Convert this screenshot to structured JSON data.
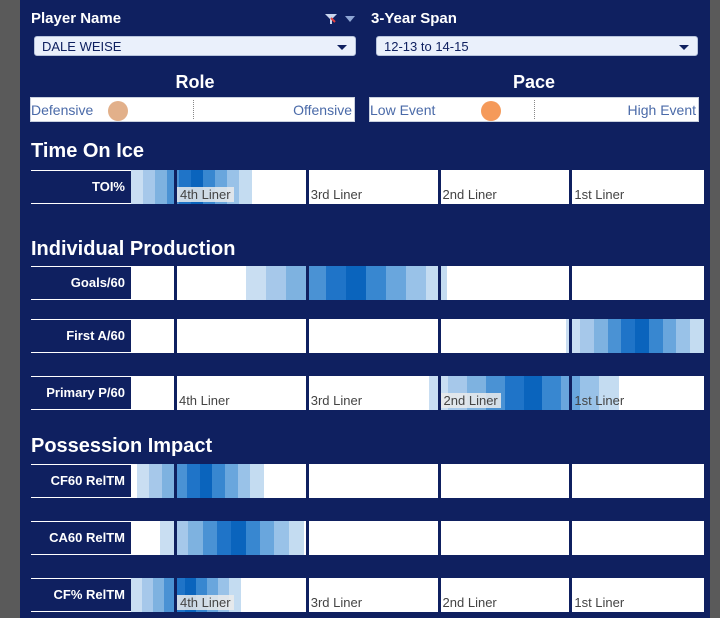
{
  "filters": {
    "player_label": "Player Name",
    "player_value": "DALE WEISE",
    "span_label": "3-Year Span",
    "span_value": "12-13 to 14-15"
  },
  "role": {
    "title": "Role",
    "left": "Defensive",
    "right": "Offensive",
    "value": 0.27,
    "knob_color": "#e2b08a"
  },
  "pace": {
    "title": "Pace",
    "left": "Low Event",
    "right": "High Event",
    "value": 0.37,
    "knob_color": "#f59a5a"
  },
  "tiers": [
    "4th Liner",
    "3rd Liner",
    "2nd Liner",
    "1st Liner"
  ],
  "tier_boundaries": [
    0.075,
    0.305,
    0.535,
    0.765
  ],
  "heat_colors": [
    "#c9def2",
    "#a6c8ea",
    "#7eb2e0",
    "#4a92d4",
    "#1f74c8",
    "#0a64bd",
    "#3887d0",
    "#69a6dd",
    "#99c2e8",
    "#c4dcf1"
  ],
  "sections": [
    {
      "title": "Time On Ice",
      "rows": [
        {
          "label": "TOI%",
          "start": 0.0,
          "end": 0.21,
          "peak": 0.1,
          "show_ticks": true,
          "highlight_tier": 0
        }
      ]
    },
    {
      "title": "Individual Production",
      "rows": [
        {
          "label": "Goals/60",
          "start": 0.2,
          "end": 0.55,
          "peak": 0.38,
          "show_ticks": false
        },
        {
          "label": "First A/60",
          "start": 0.76,
          "end": 1.0,
          "peak": 0.86,
          "show_ticks": false
        },
        {
          "label": "Primary P/60",
          "start": 0.52,
          "end": 0.85,
          "peak": 0.67,
          "show_ticks": true,
          "highlight_tier": 2
        }
      ]
    },
    {
      "title": "Possession Impact",
      "rows": [
        {
          "label": "CF60 RelTM",
          "start": 0.01,
          "end": 0.23,
          "peak": 0.12,
          "show_ticks": false
        },
        {
          "label": "CA60 RelTM",
          "start": 0.05,
          "end": 0.3,
          "peak": 0.18,
          "show_ticks": false
        },
        {
          "label": "CF% RelTM",
          "start": 0.0,
          "end": 0.19,
          "peak": 0.08,
          "show_ticks": true,
          "highlight_tier": 0
        }
      ]
    }
  ]
}
